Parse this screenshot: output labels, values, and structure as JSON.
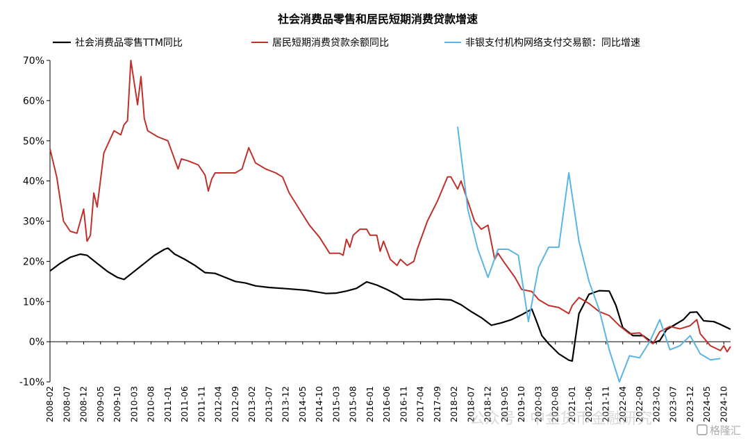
{
  "chart_data": {
    "type": "line",
    "title": "社会消费品零售和居民短期消费贷款增速",
    "ylim": [
      -10,
      70
    ],
    "yticks": [
      -10,
      0,
      10,
      20,
      30,
      40,
      50,
      60,
      70
    ],
    "ytick_labels": [
      "-10%",
      "0%",
      "10%",
      "20%",
      "30%",
      "40%",
      "50%",
      "60%",
      "70%"
    ],
    "x_start": "2008-02",
    "x_end": "2024-12",
    "xtick_labels": [
      "2008-02",
      "2008-07",
      "2008-12",
      "2009-05",
      "2009-10",
      "2010-03",
      "2010-08",
      "2011-01",
      "2011-06",
      "2011-11",
      "2012-04",
      "2012-09",
      "2013-02",
      "2013-07",
      "2013-12",
      "2014-05",
      "2014-10",
      "2015-03",
      "2015-08",
      "2016-01",
      "2016-06",
      "2016-11",
      "2017-04",
      "2017-09",
      "2018-02",
      "2018-07",
      "2018-12",
      "2019-05",
      "2019-10",
      "2020-03",
      "2020-08",
      "2021-01",
      "2021-06",
      "2021-11",
      "2022-04",
      "2022-09",
      "2023-02",
      "2023-07",
      "2023-12",
      "2024-05",
      "2024-10"
    ],
    "legend_placement": "top",
    "series": [
      {
        "name": "社会消费品零售TTM同比",
        "color": "#000000",
        "points": [
          [
            "2008-02",
            17.6
          ],
          [
            "2008-05",
            19.5
          ],
          [
            "2008-08",
            21
          ],
          [
            "2008-11",
            21.8
          ],
          [
            "2009-01",
            21.5
          ],
          [
            "2009-04",
            19.5
          ],
          [
            "2009-07",
            17.5
          ],
          [
            "2009-10",
            16
          ],
          [
            "2009-12",
            15.5
          ],
          [
            "2010-03",
            17.5
          ],
          [
            "2010-06",
            19.5
          ],
          [
            "2010-09",
            21.5
          ],
          [
            "2010-12",
            23
          ],
          [
            "2011-01",
            23.3
          ],
          [
            "2011-03",
            21.8
          ],
          [
            "2011-06",
            20.5
          ],
          [
            "2011-09",
            19
          ],
          [
            "2011-12",
            17.2
          ],
          [
            "2012-03",
            17
          ],
          [
            "2012-06",
            16
          ],
          [
            "2012-09",
            15
          ],
          [
            "2012-12",
            14.6
          ],
          [
            "2013-03",
            13.9
          ],
          [
            "2013-07",
            13.5
          ],
          [
            "2013-12",
            13.2
          ],
          [
            "2014-06",
            12.8
          ],
          [
            "2014-12",
            12
          ],
          [
            "2015-03",
            12.1
          ],
          [
            "2015-06",
            12.6
          ],
          [
            "2015-09",
            13.3
          ],
          [
            "2015-12",
            14.9
          ],
          [
            "2016-03",
            14.1
          ],
          [
            "2016-06",
            13
          ],
          [
            "2016-09",
            11.7
          ],
          [
            "2016-11",
            10.6
          ],
          [
            "2017-04",
            10.4
          ],
          [
            "2017-09",
            10.6
          ],
          [
            "2018-01",
            10.4
          ],
          [
            "2018-04",
            9.2
          ],
          [
            "2018-07",
            7.5
          ],
          [
            "2018-10",
            6
          ],
          [
            "2019-01",
            4.1
          ],
          [
            "2019-04",
            4.7
          ],
          [
            "2019-07",
            5.5
          ],
          [
            "2019-10",
            6.7
          ],
          [
            "2020-01",
            8.1
          ],
          [
            "2020-02",
            6
          ],
          [
            "2020-04",
            1.5
          ],
          [
            "2020-06",
            -0.5
          ],
          [
            "2020-09",
            -3
          ],
          [
            "2020-12",
            -4.6
          ],
          [
            "2021-01",
            -4.8
          ],
          [
            "2021-03",
            7
          ],
          [
            "2021-06",
            11.8
          ],
          [
            "2021-09",
            12.7
          ],
          [
            "2021-12",
            12.6
          ],
          [
            "2022-02",
            9
          ],
          [
            "2022-04",
            3.5
          ],
          [
            "2022-07",
            1.5
          ],
          [
            "2022-10",
            1.5
          ],
          [
            "2023-01",
            -0.3
          ],
          [
            "2023-03",
            0.3
          ],
          [
            "2023-05",
            3
          ],
          [
            "2023-07",
            4
          ],
          [
            "2023-10",
            5.5
          ],
          [
            "2023-12",
            7.3
          ],
          [
            "2024-02",
            7.4
          ],
          [
            "2024-04",
            5.2
          ],
          [
            "2024-07",
            5
          ],
          [
            "2024-09",
            4.3
          ],
          [
            "2024-12",
            3.1
          ]
        ]
      },
      {
        "name": "居民短期消费贷款余额同比",
        "color": "#c0302a",
        "points": [
          [
            "2008-02",
            48
          ],
          [
            "2008-04",
            41
          ],
          [
            "2008-06",
            30
          ],
          [
            "2008-08",
            27.5
          ],
          [
            "2008-10",
            27
          ],
          [
            "2008-12",
            33
          ],
          [
            "2009-01",
            25
          ],
          [
            "2009-02",
            26.5
          ],
          [
            "2009-03",
            37
          ],
          [
            "2009-04",
            33.5
          ],
          [
            "2009-06",
            47
          ],
          [
            "2009-09",
            52.5
          ],
          [
            "2009-11",
            51.5
          ],
          [
            "2009-12",
            54
          ],
          [
            "2010-01",
            55
          ],
          [
            "2010-02",
            70
          ],
          [
            "2010-04",
            59
          ],
          [
            "2010-05",
            66
          ],
          [
            "2010-06",
            55.5
          ],
          [
            "2010-07",
            52.5
          ],
          [
            "2010-10",
            51
          ],
          [
            "2011-01",
            50
          ],
          [
            "2011-04",
            43
          ],
          [
            "2011-05",
            45.5
          ],
          [
            "2011-07",
            45
          ],
          [
            "2011-10",
            44
          ],
          [
            "2011-12",
            41.5
          ],
          [
            "2012-01",
            37.5
          ],
          [
            "2012-02",
            40.5
          ],
          [
            "2012-03",
            42
          ],
          [
            "2012-06",
            42
          ],
          [
            "2012-09",
            42
          ],
          [
            "2012-11",
            43
          ],
          [
            "2013-01",
            48.3
          ],
          [
            "2013-03",
            44.5
          ],
          [
            "2013-06",
            43
          ],
          [
            "2013-09",
            42
          ],
          [
            "2013-11",
            41
          ],
          [
            "2014-01",
            37
          ],
          [
            "2014-04",
            33
          ],
          [
            "2014-07",
            29
          ],
          [
            "2014-10",
            26
          ],
          [
            "2015-01",
            22
          ],
          [
            "2015-04",
            22
          ],
          [
            "2015-05",
            21.5
          ],
          [
            "2015-06",
            25.5
          ],
          [
            "2015-07",
            23.5
          ],
          [
            "2015-08",
            26.5
          ],
          [
            "2015-10",
            28
          ],
          [
            "2015-12",
            28
          ],
          [
            "2016-01",
            26.5
          ],
          [
            "2016-03",
            26.5
          ],
          [
            "2016-04",
            22.5
          ],
          [
            "2016-05",
            25
          ],
          [
            "2016-07",
            20.5
          ],
          [
            "2016-09",
            19
          ],
          [
            "2016-10",
            20.5
          ],
          [
            "2016-12",
            19
          ],
          [
            "2017-02",
            20
          ],
          [
            "2017-03",
            23
          ],
          [
            "2017-06",
            30
          ],
          [
            "2017-09",
            35
          ],
          [
            "2017-12",
            41
          ],
          [
            "2018-01",
            41
          ],
          [
            "2018-03",
            38
          ],
          [
            "2018-04",
            40
          ],
          [
            "2018-06",
            35
          ],
          [
            "2018-08",
            30
          ],
          [
            "2018-10",
            28
          ],
          [
            "2018-12",
            29
          ],
          [
            "2019-02",
            20.5
          ],
          [
            "2019-03",
            22
          ],
          [
            "2019-05",
            19.5
          ],
          [
            "2019-08",
            16
          ],
          [
            "2019-10",
            13
          ],
          [
            "2020-01",
            12.5
          ],
          [
            "2020-03",
            10.5
          ],
          [
            "2020-06",
            9
          ],
          [
            "2020-09",
            8.5
          ],
          [
            "2020-12",
            7
          ],
          [
            "2021-01",
            9
          ],
          [
            "2021-03",
            11
          ],
          [
            "2021-06",
            9.5
          ],
          [
            "2021-09",
            7.5
          ],
          [
            "2021-12",
            6.5
          ],
          [
            "2022-03",
            4
          ],
          [
            "2022-06",
            2
          ],
          [
            "2022-09",
            2.2
          ],
          [
            "2022-12",
            0
          ],
          [
            "2023-01",
            -0.5
          ],
          [
            "2023-03",
            2.5
          ],
          [
            "2023-06",
            3.8
          ],
          [
            "2023-09",
            3.2
          ],
          [
            "2023-12",
            4
          ],
          [
            "2024-02",
            5.5
          ],
          [
            "2024-03",
            2
          ],
          [
            "2024-06",
            -1
          ],
          [
            "2024-09",
            -2.2
          ],
          [
            "2024-10",
            -1
          ],
          [
            "2024-11",
            -2.5
          ],
          [
            "2024-12",
            -1.2
          ]
        ]
      },
      {
        "name": "非银支付机构网络支付交易额：同比增速",
        "color": "#5ab4e6",
        "points": [
          [
            "2018-03",
            53.5
          ],
          [
            "2018-06",
            33
          ],
          [
            "2018-09",
            23
          ],
          [
            "2018-12",
            16
          ],
          [
            "2019-03",
            23
          ],
          [
            "2019-06",
            23
          ],
          [
            "2019-09",
            21.5
          ],
          [
            "2019-12",
            5
          ],
          [
            "2020-03",
            18.5
          ],
          [
            "2020-06",
            23.5
          ],
          [
            "2020-09",
            23.5
          ],
          [
            "2020-12",
            42
          ],
          [
            "2021-03",
            25
          ],
          [
            "2021-06",
            15
          ],
          [
            "2021-09",
            8
          ],
          [
            "2021-12",
            -2
          ],
          [
            "2022-03",
            -10
          ],
          [
            "2022-06",
            -3.5
          ],
          [
            "2022-09",
            -4
          ],
          [
            "2022-12",
            0
          ],
          [
            "2023-03",
            5.5
          ],
          [
            "2023-06",
            -2
          ],
          [
            "2023-09",
            -1
          ],
          [
            "2023-12",
            1.5
          ],
          [
            "2024-03",
            -3
          ],
          [
            "2024-06",
            -4.5
          ],
          [
            "2024-09",
            -4.2
          ]
        ]
      }
    ]
  },
  "watermark": {
    "text": "公众号 · 中金货币金融研究",
    "logo_text": "格隆汇"
  }
}
